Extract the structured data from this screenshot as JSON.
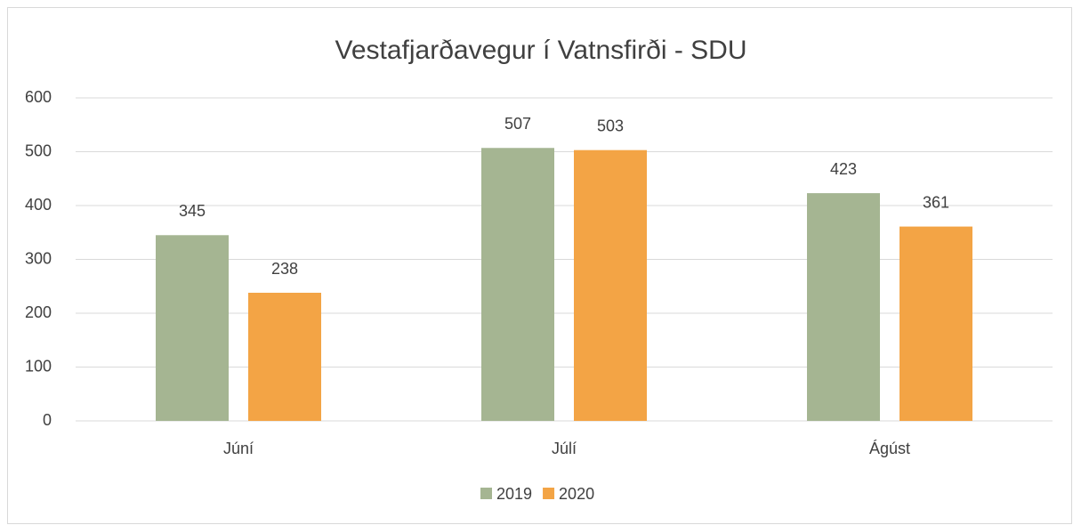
{
  "chart_data": {
    "type": "bar",
    "title": "Vestafjarðavegur í Vatnsfirði - SDU",
    "categories": [
      "Júní",
      "Júlí",
      "Ágúst"
    ],
    "series": [
      {
        "name": "2019",
        "color": "#a5b592",
        "values": [
          345,
          507,
          423
        ]
      },
      {
        "name": "2020",
        "color": "#f3a445",
        "values": [
          238,
          503,
          361
        ]
      }
    ],
    "ylim": [
      0,
      600
    ],
    "yticks": [
      0,
      100,
      200,
      300,
      400,
      500,
      600
    ],
    "grid": true,
    "legend": "bottom"
  }
}
